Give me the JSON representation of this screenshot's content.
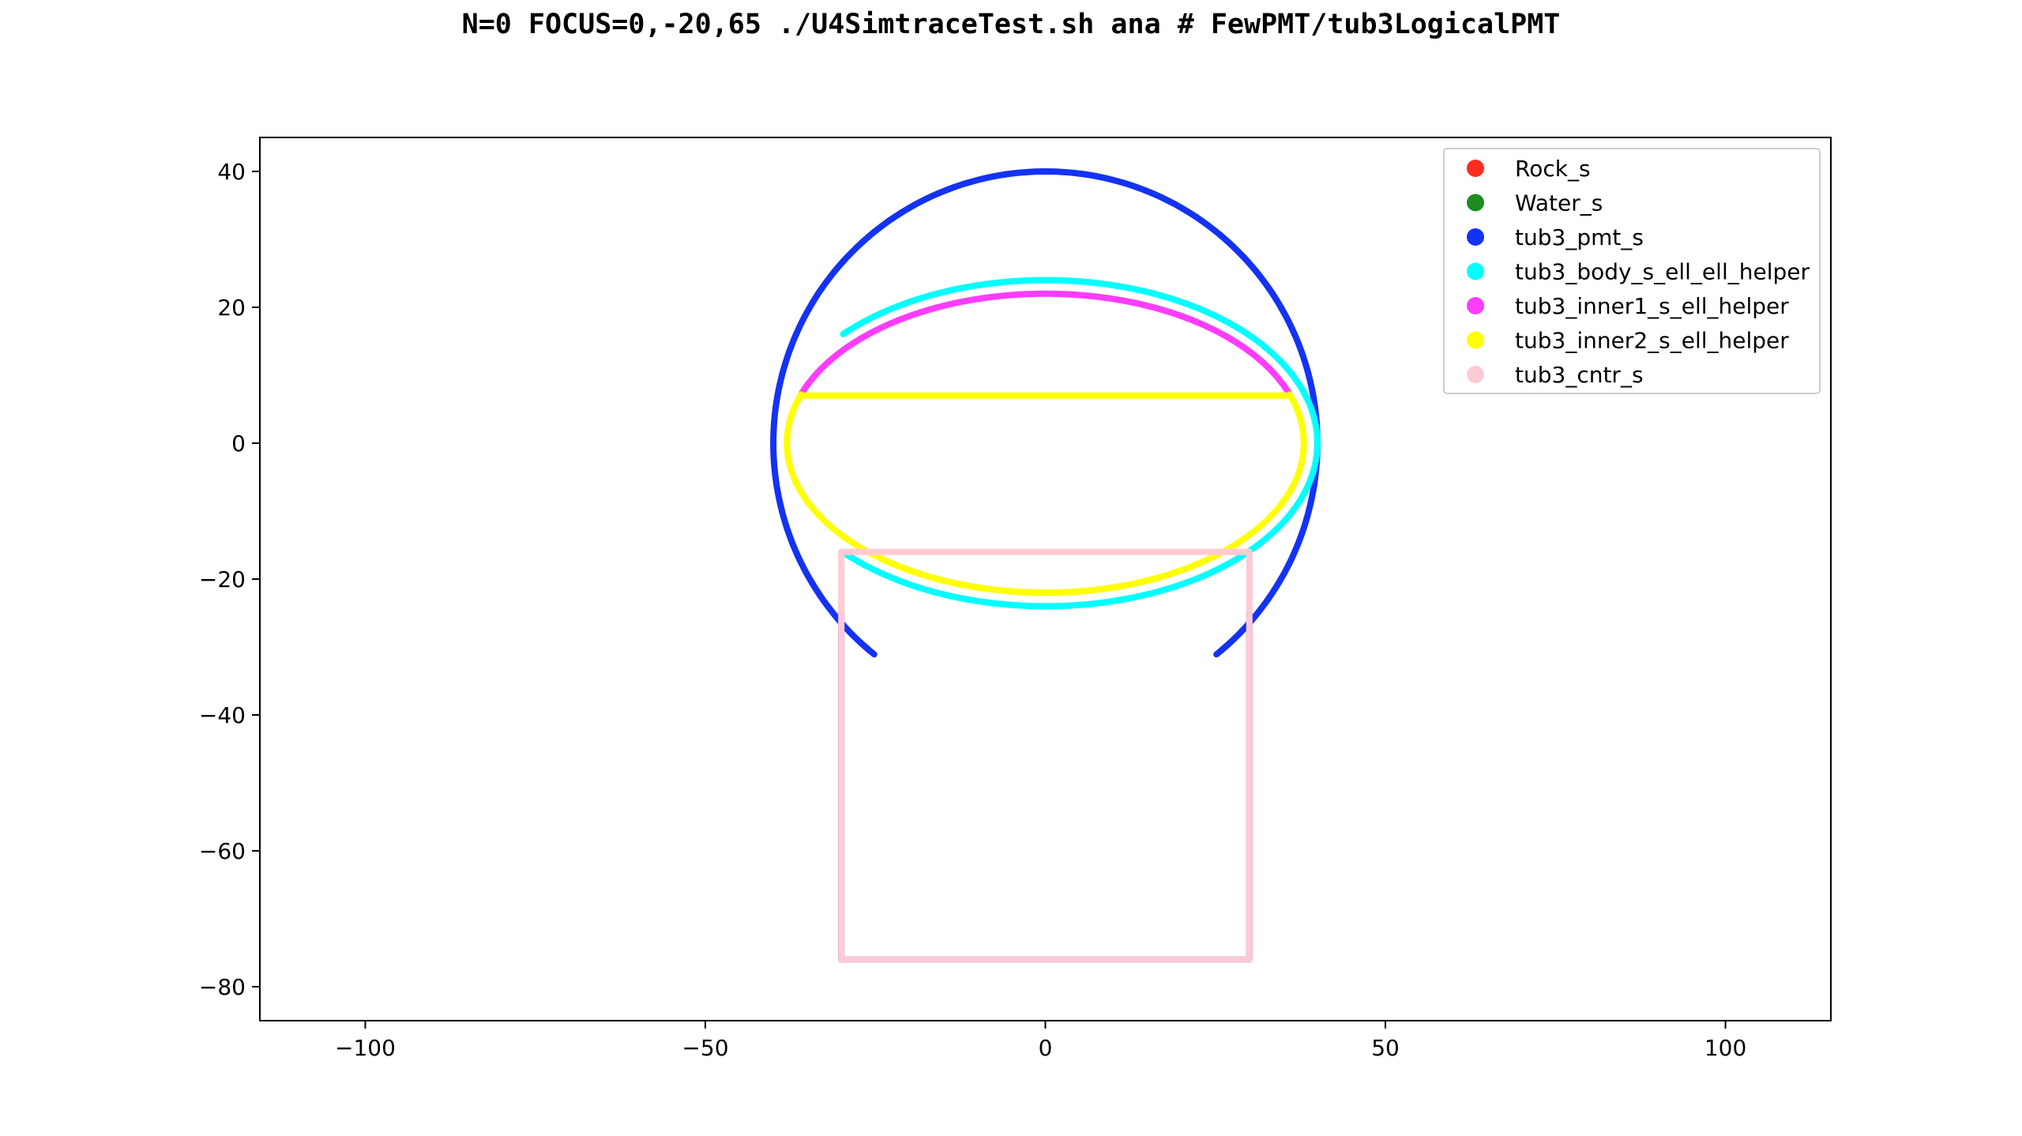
{
  "title": "N=0  FOCUS=0,-20,65  ./U4SimtraceTest.sh ana   # FewPMT/tub3LogicalPMT",
  "chart_data": {
    "type": "scatter",
    "title": "N=0  FOCUS=0,-20,65  ./U4SimtraceTest.sh ana   # FewPMT/tub3LogicalPMT",
    "xlabel": "",
    "ylabel": "",
    "xlim": [
      -115.5,
      115.5
    ],
    "ylim": [
      -85,
      45
    ],
    "xticks": [
      -100,
      -50,
      0,
      50,
      100
    ],
    "yticks": [
      40,
      20,
      0,
      -20,
      -40,
      -60,
      -80
    ],
    "xtick_labels": [
      "−100",
      "−50",
      "0",
      "50",
      "100"
    ],
    "ytick_labels": [
      "40",
      "20",
      "0",
      "−20",
      "−40",
      "−60",
      "−80"
    ],
    "grid": false,
    "legend_position": "top-right",
    "series": [
      {
        "name": "Rock_s",
        "color": "#ff2d1e",
        "shapes": []
      },
      {
        "name": "Water_s",
        "color": "#1e8c1e",
        "shapes": []
      },
      {
        "name": "tub3_pmt_s",
        "color": "#1432f5",
        "shapes": [
          {
            "kind": "arc",
            "cx": 0,
            "cy": 0,
            "rx": 40,
            "ry": 40,
            "from_deg": -51,
            "to_deg": 231
          },
          {
            "kind": "polyline",
            "points": [
              [
                -30,
                -25
              ],
              [
                -30,
                -76
              ],
              [
                30,
                -76
              ],
              [
                30,
                -25
              ]
            ]
          }
        ]
      },
      {
        "name": "tub3_body_s_ell_ell_helper",
        "color": "#00ffff",
        "shapes": [
          {
            "kind": "arc",
            "cx": 0,
            "cy": 0,
            "rx": 40,
            "ry": 24,
            "from_deg": -138,
            "to_deg": 138
          }
        ]
      },
      {
        "name": "tub3_inner1_s_ell_helper",
        "color": "#ff3cff",
        "shapes": [
          {
            "kind": "arc",
            "cx": 0,
            "cy": 0,
            "rx": 38,
            "ry": 22,
            "from_deg": 19,
            "to_deg": 161
          }
        ]
      },
      {
        "name": "tub3_inner2_s_ell_helper",
        "color": "#ffff00",
        "shapes": [
          {
            "kind": "arc",
            "cx": 0,
            "cy": 0,
            "rx": 38,
            "ry": 22,
            "from_deg": -132,
            "to_deg": 19
          },
          {
            "kind": "arc",
            "cx": 0,
            "cy": 0,
            "rx": 38,
            "ry": 22,
            "from_deg": 161,
            "to_deg": 312
          },
          {
            "kind": "polyline",
            "points": [
              [
                -35.5,
                7
              ],
              [
                35.5,
                7
              ]
            ]
          }
        ]
      },
      {
        "name": "tub3_cntr_s",
        "color": "#ffcad4",
        "shapes": [
          {
            "kind": "polyline",
            "points": [
              [
                -30,
                -76
              ],
              [
                -30,
                -16
              ],
              [
                30,
                -16
              ],
              [
                30,
                -76
              ],
              [
                -30,
                -76
              ]
            ]
          }
        ]
      }
    ]
  }
}
